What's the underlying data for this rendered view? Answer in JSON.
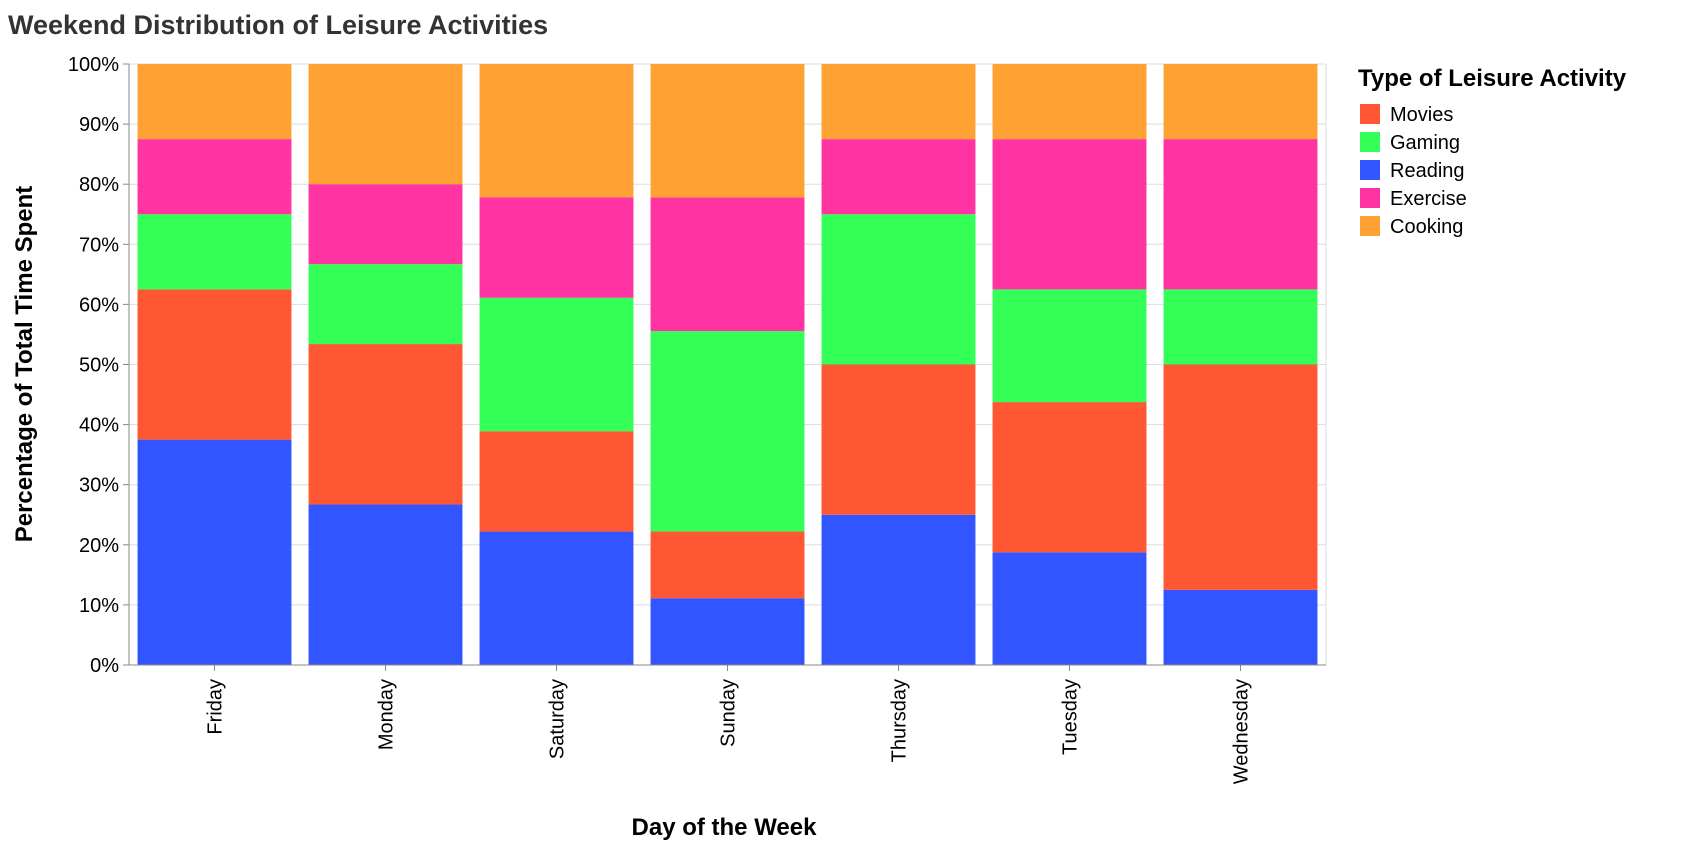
{
  "chart_data": {
    "type": "bar",
    "stacked": "normalize",
    "title": "Weekend Distribution of Leisure Activities",
    "xlabel": "Day of the Week",
    "ylabel": "Percentage of Total Time Spent",
    "ylim": [
      0,
      1
    ],
    "y_tick_labels": [
      "0%",
      "10%",
      "20%",
      "30%",
      "40%",
      "50%",
      "60%",
      "70%",
      "80%",
      "90%",
      "100%"
    ],
    "grid": true,
    "legend_title": "Type of Leisure Activity",
    "legend_position": "right",
    "categories": [
      "Friday",
      "Monday",
      "Saturday",
      "Sunday",
      "Thursday",
      "Tuesday",
      "Wednesday"
    ],
    "series": [
      {
        "name": "Reading",
        "color": "#3355ff",
        "values": [
          0.375,
          0.267,
          0.222,
          0.111,
          0.25,
          0.1875,
          0.125
        ]
      },
      {
        "name": "Movies",
        "color": "#ff5733",
        "values": [
          0.25,
          0.267,
          0.167,
          0.111,
          0.25,
          0.25,
          0.375
        ]
      },
      {
        "name": "Gaming",
        "color": "#33ff57",
        "values": [
          0.125,
          0.133,
          0.222,
          0.333,
          0.25,
          0.1875,
          0.125
        ]
      },
      {
        "name": "Exercise",
        "color": "#ff33a1",
        "values": [
          0.125,
          0.133,
          0.167,
          0.222,
          0.125,
          0.25,
          0.25
        ]
      },
      {
        "name": "Cooking",
        "color": "#ffa133",
        "values": [
          0.125,
          0.2,
          0.222,
          0.222,
          0.125,
          0.125,
          0.125
        ]
      }
    ],
    "legend_order": [
      "Movies",
      "Gaming",
      "Reading",
      "Exercise",
      "Cooking"
    ]
  }
}
